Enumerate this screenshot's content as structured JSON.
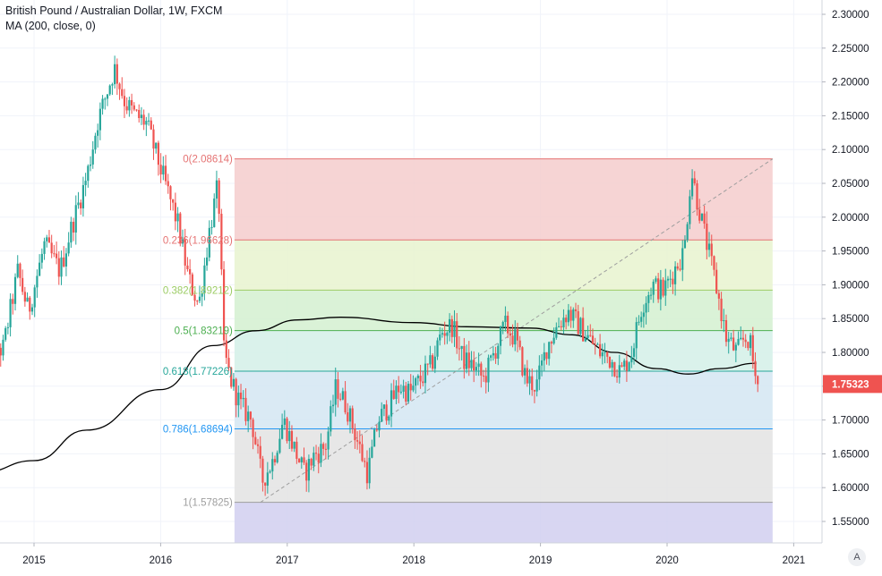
{
  "header": {
    "title": "British Pound / Australian Dollar, 1W, FXCM",
    "indicator": "MA (200, close, 0)"
  },
  "axis_button": "A",
  "colors": {
    "up": "#26a69a",
    "down": "#ef5350",
    "ma": "#000000",
    "price_label_bg": "#ef5350"
  },
  "chart_data": {
    "type": "candlestick",
    "title": "British Pound / Australian Dollar, 1W, FXCM",
    "x_axis": {
      "type": "time",
      "range": [
        "2014-08",
        "2021-04"
      ],
      "ticks": [
        "2015",
        "2016",
        "2017",
        "2018",
        "2019",
        "2020",
        "2021"
      ]
    },
    "y_axis": {
      "range": [
        1.52,
        2.31
      ],
      "ticks": [
        "1.55000",
        "1.60000",
        "1.65000",
        "1.70000",
        "1.75000",
        "1.80000",
        "1.85000",
        "1.90000",
        "1.95000",
        "2.00000",
        "2.05000",
        "2.10000",
        "2.15000",
        "2.20000",
        "2.25000",
        "2.30000"
      ],
      "position": "right"
    },
    "grid": true,
    "last_price": "1.75323",
    "price_path": [
      [
        "2014-08-01",
        1.84
      ],
      [
        "2014-10-01",
        1.8
      ],
      [
        "2014-11-15",
        1.92
      ],
      [
        "2014-12-15",
        1.86
      ],
      [
        "2015-02-01",
        1.96
      ],
      [
        "2015-03-15",
        1.92
      ],
      [
        "2015-04-15",
        1.98
      ],
      [
        "2015-06-01",
        2.06
      ],
      [
        "2015-07-01",
        2.14
      ],
      [
        "2015-08-20",
        2.22
      ],
      [
        "2015-09-20",
        2.17
      ],
      [
        "2015-10-20",
        2.15
      ],
      [
        "2015-11-20",
        2.14
      ],
      [
        "2015-12-20",
        2.09
      ],
      [
        "2016-01-20",
        2.04
      ],
      [
        "2016-02-20",
        1.99
      ],
      [
        "2016-03-20",
        1.91
      ],
      [
        "2016-04-20",
        1.87
      ],
      [
        "2016-05-20",
        1.98
      ],
      [
        "2016-06-15",
        2.05
      ],
      [
        "2016-07-01",
        1.8
      ],
      [
        "2016-07-20",
        1.76
      ],
      [
        "2016-08-20",
        1.72
      ],
      [
        "2016-09-20",
        1.7
      ],
      [
        "2016-10-20",
        1.61
      ],
      [
        "2016-11-20",
        1.64
      ],
      [
        "2016-12-20",
        1.7
      ],
      [
        "2017-01-20",
        1.66
      ],
      [
        "2017-02-20",
        1.62
      ],
      [
        "2017-03-20",
        1.65
      ],
      [
        "2017-04-20",
        1.66
      ],
      [
        "2017-05-20",
        1.75
      ],
      [
        "2017-06-20",
        1.72
      ],
      [
        "2017-07-20",
        1.67
      ],
      [
        "2017-08-20",
        1.62
      ],
      [
        "2017-09-20",
        1.7
      ],
      [
        "2017-10-20",
        1.72
      ],
      [
        "2017-11-20",
        1.75
      ],
      [
        "2017-12-20",
        1.74
      ],
      [
        "2018-01-20",
        1.76
      ],
      [
        "2018-02-20",
        1.78
      ],
      [
        "2018-03-20",
        1.83
      ],
      [
        "2018-04-20",
        1.84
      ],
      [
        "2018-05-20",
        1.79
      ],
      [
        "2018-06-20",
        1.78
      ],
      [
        "2018-07-20",
        1.76
      ],
      [
        "2018-08-20",
        1.8
      ],
      [
        "2018-09-20",
        1.84
      ],
      [
        "2018-10-20",
        1.82
      ],
      [
        "2018-11-20",
        1.76
      ],
      [
        "2018-12-20",
        1.75
      ],
      [
        "2019-01-20",
        1.81
      ],
      [
        "2019-02-20",
        1.84
      ],
      [
        "2019-03-20",
        1.86
      ],
      [
        "2019-04-20",
        1.84
      ],
      [
        "2019-05-20",
        1.82
      ],
      [
        "2019-06-20",
        1.8
      ],
      [
        "2019-07-20",
        1.79
      ],
      [
        "2019-08-20",
        1.77
      ],
      [
        "2019-09-20",
        1.8
      ],
      [
        "2019-10-20",
        1.87
      ],
      [
        "2019-11-20",
        1.9
      ],
      [
        "2019-12-20",
        1.89
      ],
      [
        "2020-01-20",
        1.92
      ],
      [
        "2020-02-20",
        1.95
      ],
      [
        "2020-03-10",
        2.07
      ],
      [
        "2020-03-25",
        2.03
      ],
      [
        "2020-04-20",
        1.97
      ],
      [
        "2020-05-20",
        1.9
      ],
      [
        "2020-06-20",
        1.82
      ],
      [
        "2020-07-20",
        1.8
      ],
      [
        "2020-08-10",
        1.82
      ],
      [
        "2020-08-25",
        1.82
      ],
      [
        "2020-09-10",
        1.77
      ],
      [
        "2020-09-18",
        1.753
      ]
    ],
    "moving_average": {
      "name": "MA (200, close, 0)",
      "points": [
        [
          "2014-08-01",
          1.622
        ],
        [
          "2015-01-01",
          1.64
        ],
        [
          "2015-06-01",
          1.685
        ],
        [
          "2016-01-01",
          1.745
        ],
        [
          "2016-06-01",
          1.81
        ],
        [
          "2016-10-01",
          1.832
        ],
        [
          "2017-02-01",
          1.848
        ],
        [
          "2017-06-01",
          1.852
        ],
        [
          "2018-01-01",
          1.844
        ],
        [
          "2018-06-01",
          1.838
        ],
        [
          "2018-12-01",
          1.836
        ],
        [
          "2019-04-01",
          1.826
        ],
        [
          "2019-08-01",
          1.8
        ],
        [
          "2019-12-01",
          1.776
        ],
        [
          "2020-03-01",
          1.768
        ],
        [
          "2020-06-01",
          1.776
        ],
        [
          "2020-09-15",
          1.784
        ]
      ]
    },
    "fibonacci": {
      "start_date": "2016-08-01",
      "end_date": "2020-11-01",
      "trend_line": [
        [
          "2016-10-15",
          1.57825
        ],
        [
          "2020-11-01",
          2.08614
        ]
      ],
      "levels": [
        {
          "label": "0(2.08614)",
          "value": 2.08614,
          "color": "#e57373",
          "fill": "#f4cccc"
        },
        {
          "label": "0.236(1.96628)",
          "value": 1.96628,
          "color": "#e57373",
          "fill": "#e8f3cf"
        },
        {
          "label": "0.382(1.89212)",
          "value": 1.89212,
          "color": "#9ccc65",
          "fill": "#d4f0d0"
        },
        {
          "label": "0.5(1.83219)",
          "value": 1.83219,
          "color": "#4caf50",
          "fill": "#d3f0e8"
        },
        {
          "label": "0.618(1.77226)",
          "value": 1.77226,
          "color": "#26a69a",
          "fill": "#d3e6f2"
        },
        {
          "label": "0.786(1.68694)",
          "value": 1.68694,
          "color": "#2196f3",
          "fill": "#e3e3e3"
        },
        {
          "label": "1(1.57825)",
          "value": 1.57825,
          "color": "#9e9e9e",
          "fill": "#d1cff0"
        }
      ]
    }
  }
}
